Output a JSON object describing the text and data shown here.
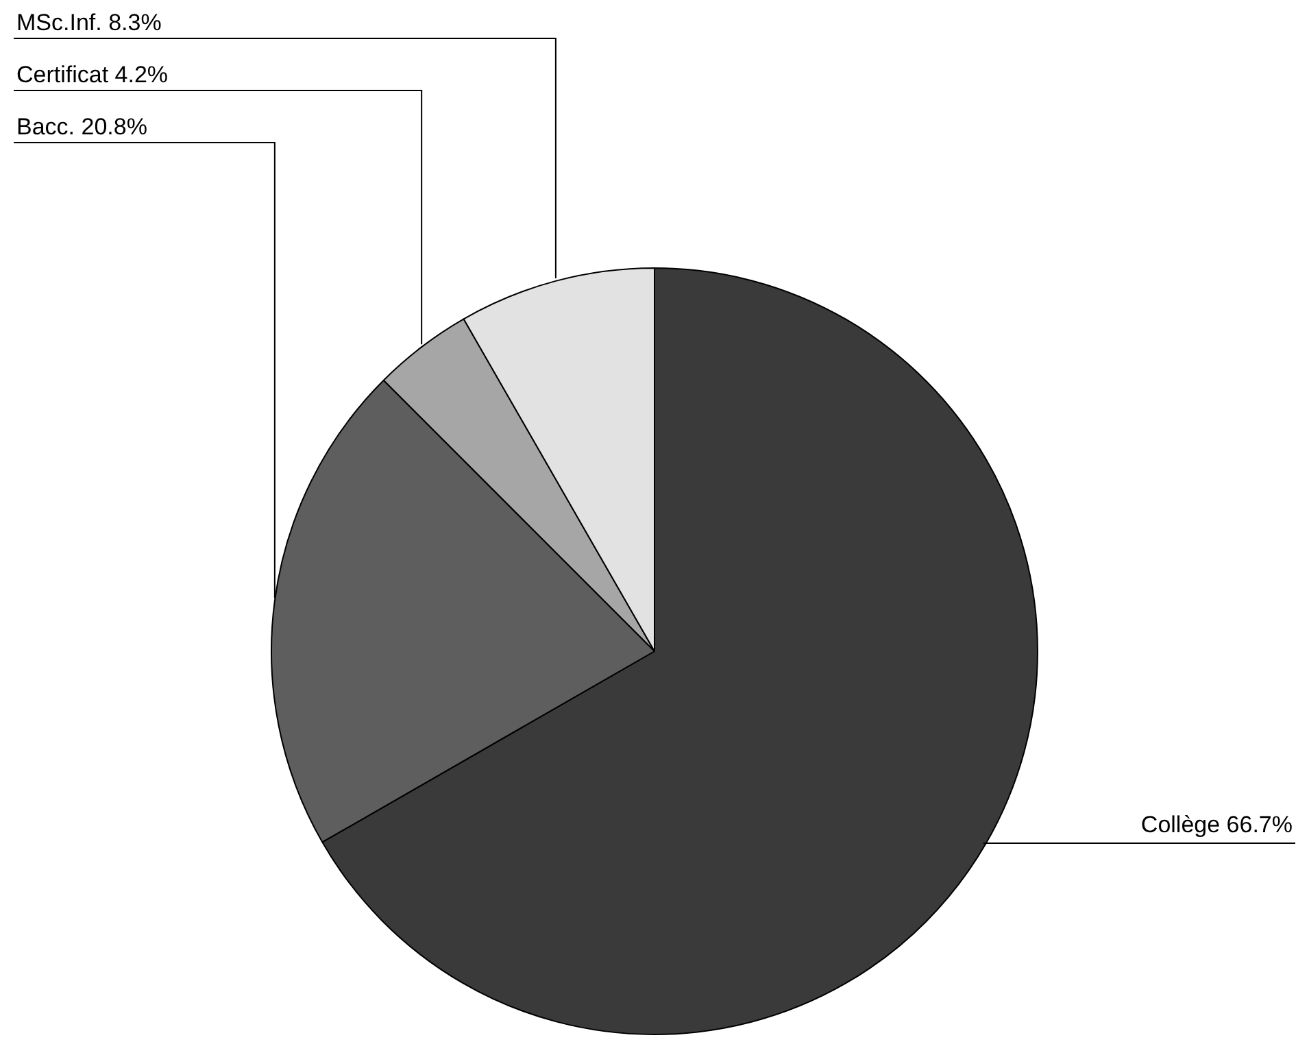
{
  "chart_data": {
    "type": "pie",
    "categories": [
      "Collège",
      "Bacc.",
      "Certificat",
      "MSc.Inf."
    ],
    "values": [
      66.7,
      20.8,
      4.2,
      8.3
    ],
    "colors": [
      "#3a3a3a",
      "#5e5e5e",
      "#a6a6a6",
      "#e2e2e2"
    ],
    "value_labels": [
      "66.7%",
      "20.8%",
      "4.2%",
      "8.3%"
    ],
    "legend": false
  }
}
